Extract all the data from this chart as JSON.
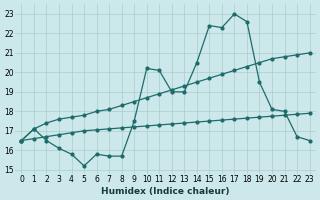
{
  "xlabel": "Humidex (Indice chaleur)",
  "xlim": [
    -0.5,
    23.5
  ],
  "ylim": [
    14.8,
    23.5
  ],
  "yticks": [
    15,
    16,
    17,
    18,
    19,
    20,
    21,
    22,
    23
  ],
  "xticks": [
    0,
    1,
    2,
    3,
    4,
    5,
    6,
    7,
    8,
    9,
    10,
    11,
    12,
    13,
    14,
    15,
    16,
    17,
    18,
    19,
    20,
    21,
    22,
    23
  ],
  "bg_color": "#cce8ea",
  "grid_color": "#aacccc",
  "line_color": "#1e6b6b",
  "line1_x": [
    0,
    1,
    2,
    3,
    4,
    5,
    6,
    7,
    8,
    9,
    10,
    11,
    12,
    13,
    14,
    15,
    16,
    17,
    18,
    19,
    20,
    21,
    22,
    23
  ],
  "line1_y": [
    16.5,
    17.1,
    17.4,
    17.6,
    17.7,
    17.8,
    18.0,
    18.1,
    18.3,
    18.5,
    18.7,
    18.9,
    19.1,
    19.3,
    19.5,
    19.7,
    19.9,
    20.1,
    20.3,
    20.5,
    20.7,
    20.8,
    20.9,
    21.0
  ],
  "line2_x": [
    0,
    1,
    2,
    3,
    4,
    5,
    6,
    7,
    8,
    9,
    10,
    11,
    12,
    13,
    14,
    15,
    16,
    17,
    18,
    19,
    20,
    21,
    22,
    23
  ],
  "line2_y": [
    16.5,
    16.6,
    16.7,
    16.8,
    16.9,
    17.0,
    17.05,
    17.1,
    17.15,
    17.2,
    17.25,
    17.3,
    17.35,
    17.4,
    17.45,
    17.5,
    17.55,
    17.6,
    17.65,
    17.7,
    17.75,
    17.8,
    17.85,
    17.9
  ],
  "line3_x": [
    0,
    1,
    2,
    3,
    4,
    5,
    6,
    7,
    8,
    9,
    10,
    11,
    12,
    13,
    14,
    15,
    16,
    17,
    18,
    19,
    20,
    21,
    22,
    23
  ],
  "line3_y": [
    16.5,
    17.1,
    16.5,
    16.1,
    15.8,
    15.2,
    15.8,
    15.7,
    15.7,
    17.5,
    20.2,
    20.1,
    19.0,
    19.0,
    20.5,
    22.4,
    22.3,
    23.0,
    22.6,
    19.5,
    18.1,
    18.0,
    16.7,
    16.5
  ],
  "figsize": [
    3.2,
    2.0
  ],
  "dpi": 100,
  "tick_fontsize": 5.5,
  "xlabel_fontsize": 6.5
}
